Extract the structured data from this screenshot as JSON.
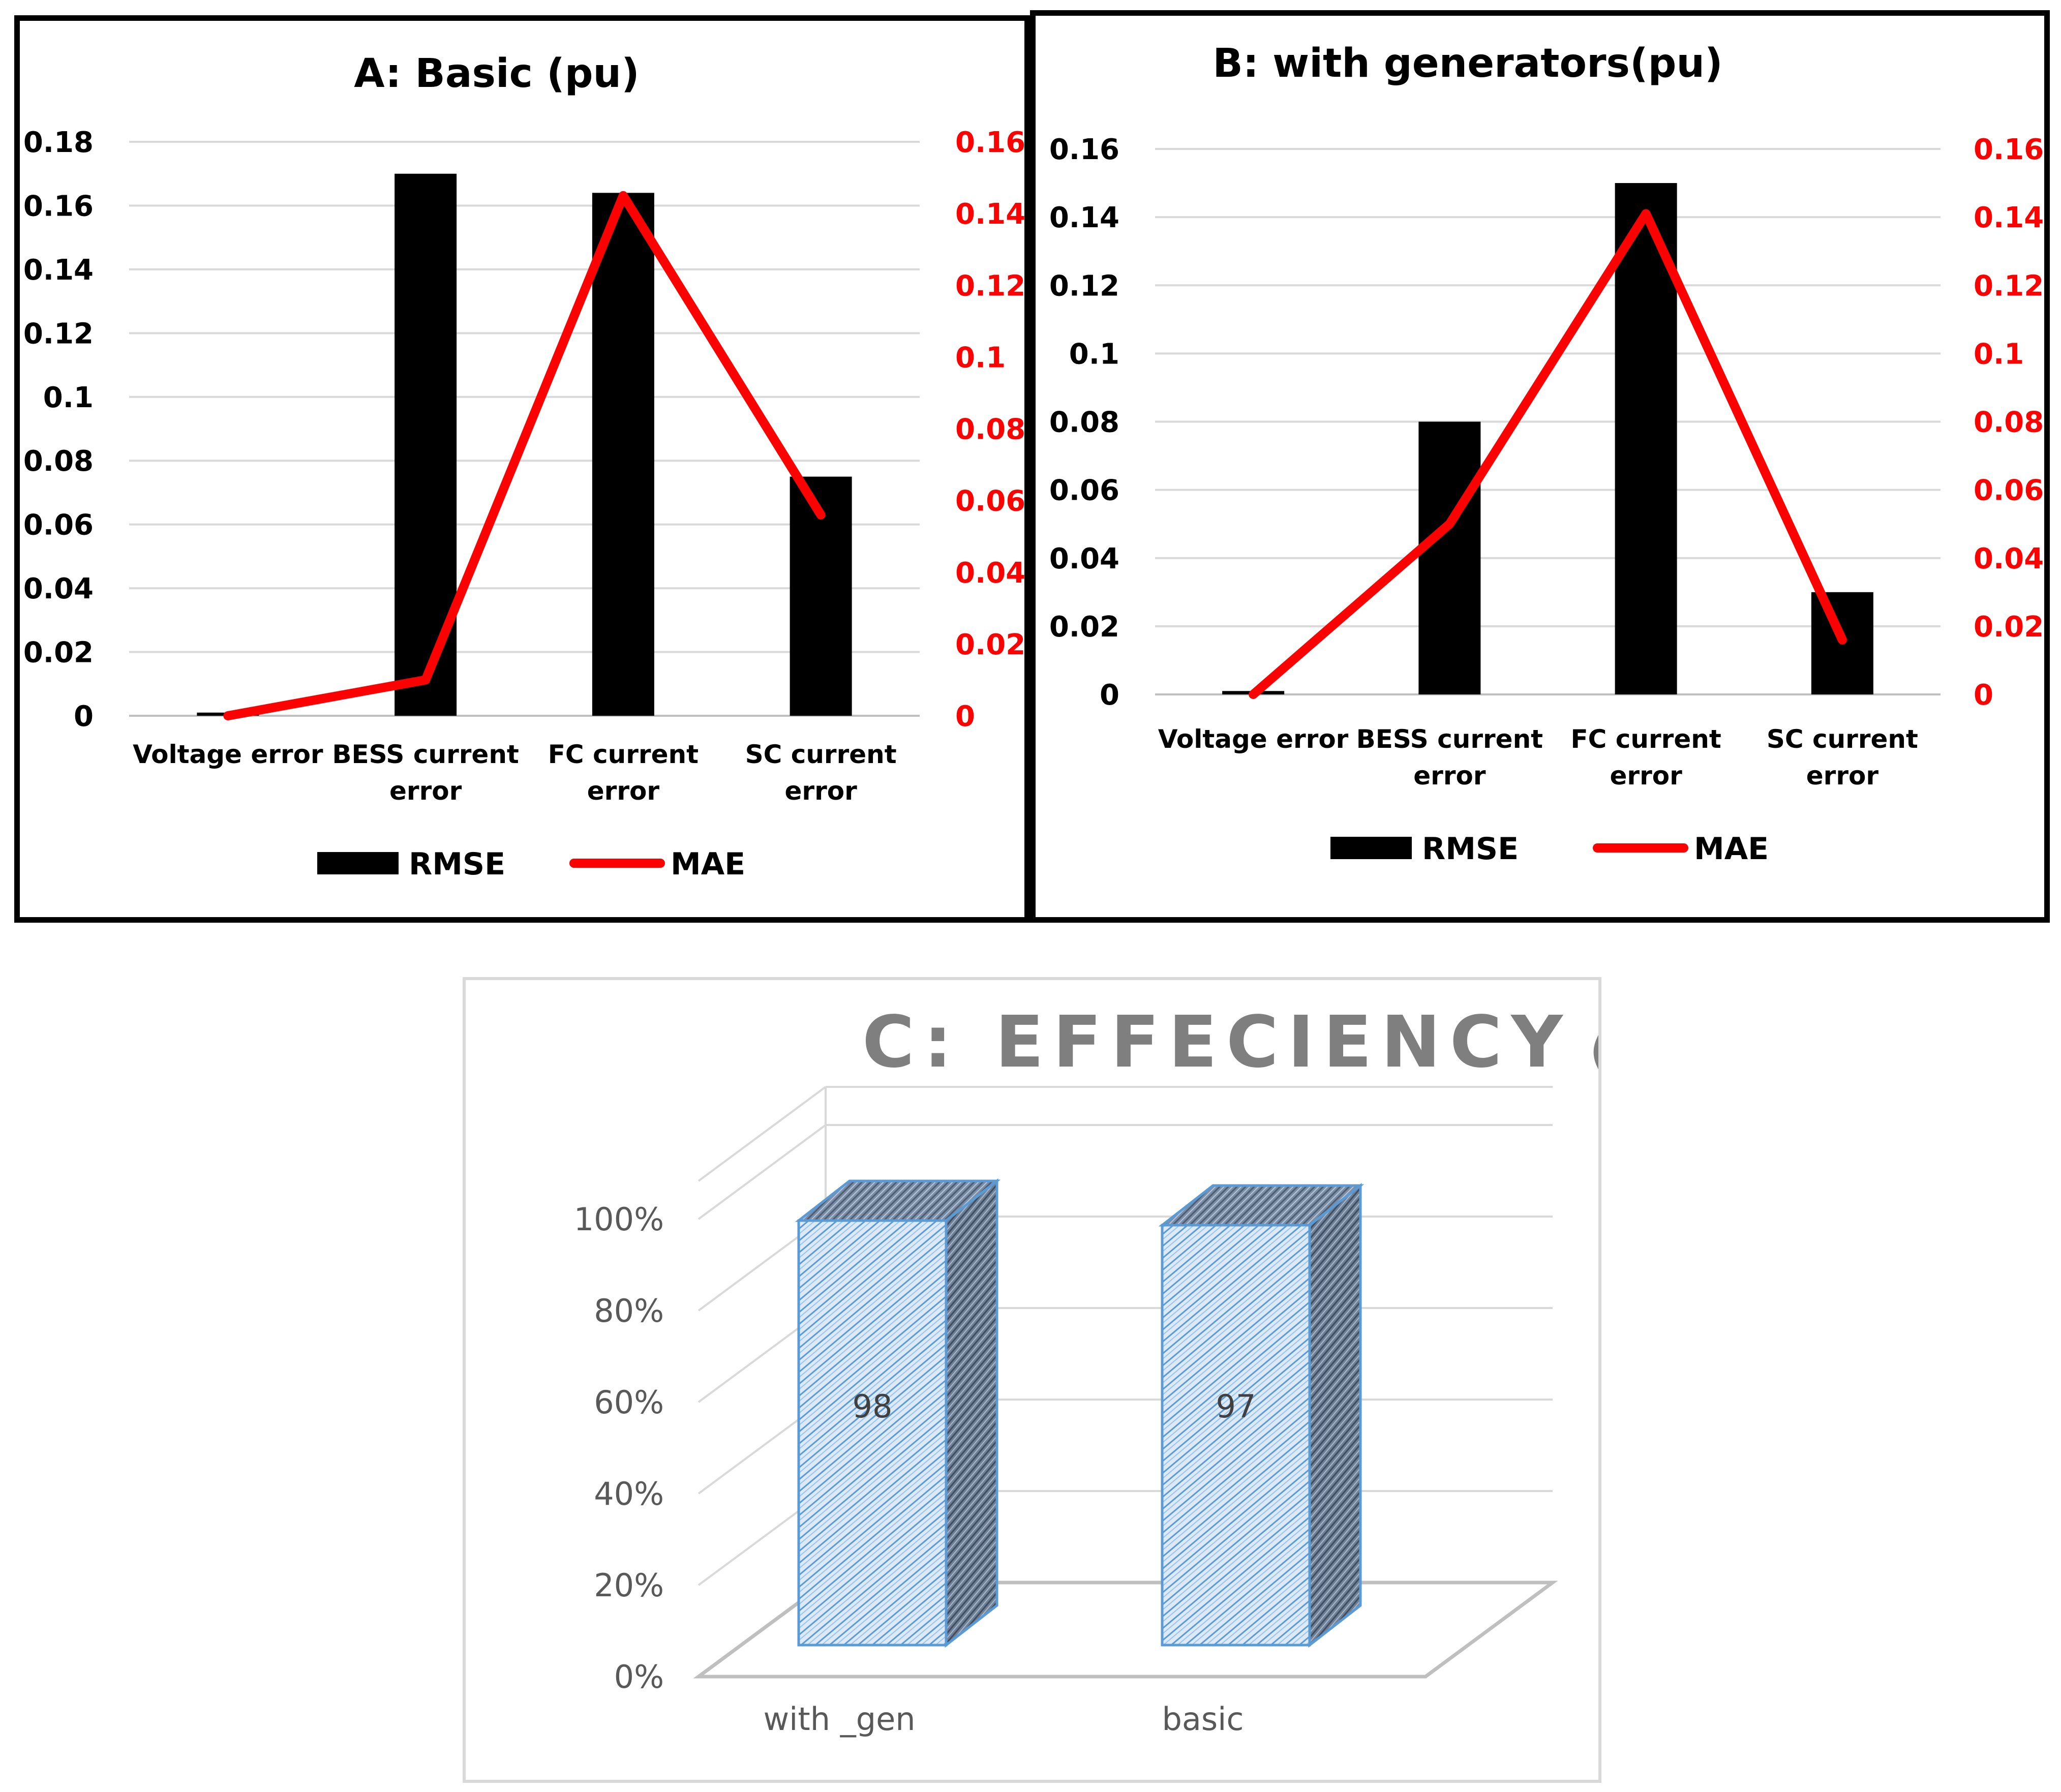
{
  "chart_data": [
    {
      "id": "A",
      "type": "bar+line",
      "title": "A: Basic (pu)",
      "categories": [
        "Voltage error",
        "BESS current error",
        "FC current error",
        "SC current error"
      ],
      "category_lines": [
        [
          "Voltage error"
        ],
        [
          "BESS current",
          "error"
        ],
        [
          "FC current",
          "error"
        ],
        [
          "SC current",
          "error"
        ]
      ],
      "series": [
        {
          "name": "RMSE",
          "type": "bar",
          "axis": "left",
          "color": "#000000",
          "values": [
            0.001,
            0.17,
            0.164,
            0.075
          ]
        },
        {
          "name": "MAE",
          "type": "line",
          "axis": "right",
          "color": "#ff0000",
          "values": [
            0.0,
            0.01,
            0.145,
            0.056
          ]
        }
      ],
      "left_axis": {
        "min": 0,
        "max": 0.18,
        "ticks": [
          "0",
          "0.02",
          "0.04",
          "0.06",
          "0.08",
          "0.1",
          "0.12",
          "0.14",
          "0.16",
          "0.18"
        ]
      },
      "right_axis": {
        "min": 0,
        "max": 0.16,
        "ticks": [
          "0",
          "0.02",
          "0.04",
          "0.06",
          "0.08",
          "0.1",
          "0.12",
          "0.14",
          "0.16"
        ],
        "color": "#ff0000"
      },
      "legend": [
        {
          "label": "RMSE",
          "kind": "bar",
          "color": "#000000"
        },
        {
          "label": "MAE",
          "kind": "line",
          "color": "#ff0000"
        }
      ]
    },
    {
      "id": "B",
      "type": "bar+line",
      "title": "B: with generators(pu)",
      "categories": [
        "Voltage error",
        "BESS current error",
        "FC current error",
        "SC current error"
      ],
      "category_lines": [
        [
          "Voltage error"
        ],
        [
          "BESS current",
          "error"
        ],
        [
          "FC current",
          "error"
        ],
        [
          "SC current",
          "error"
        ]
      ],
      "series": [
        {
          "name": "RMSE",
          "type": "bar",
          "axis": "left",
          "color": "#000000",
          "values": [
            0.001,
            0.08,
            0.15,
            0.03
          ]
        },
        {
          "name": "MAE",
          "type": "line",
          "axis": "right",
          "color": "#ff0000",
          "values": [
            0.0,
            0.05,
            0.141,
            0.016
          ]
        }
      ],
      "left_axis": {
        "min": 0,
        "max": 0.16,
        "ticks": [
          "0",
          "0.02",
          "0.04",
          "0.06",
          "0.08",
          "0.1",
          "0.12",
          "0.14",
          "0.16"
        ]
      },
      "right_axis": {
        "min": 0,
        "max": 0.16,
        "ticks": [
          "0",
          "0.02",
          "0.04",
          "0.06",
          "0.08",
          "0.1",
          "0.12",
          "0.14",
          "0.16"
        ],
        "color": "#ff0000"
      },
      "legend": [
        {
          "label": "RMSE",
          "kind": "bar",
          "color": "#000000"
        },
        {
          "label": "MAE",
          "kind": "line",
          "color": "#ff0000"
        }
      ]
    },
    {
      "id": "C",
      "type": "bar",
      "title_main": "C: EFFECIENCY",
      "title_unit": "(%)",
      "categories": [
        "with _gen",
        "basic"
      ],
      "values": [
        98,
        97
      ],
      "data_labels": [
        "98",
        "97"
      ],
      "y_axis": {
        "min": 0,
        "max": 100,
        "ticks": [
          "0%",
          "20%",
          "40%",
          "60%",
          "80%",
          "100%"
        ]
      },
      "bar_color": "#dce9f7",
      "bar_outline": "#5b9bd5"
    }
  ]
}
